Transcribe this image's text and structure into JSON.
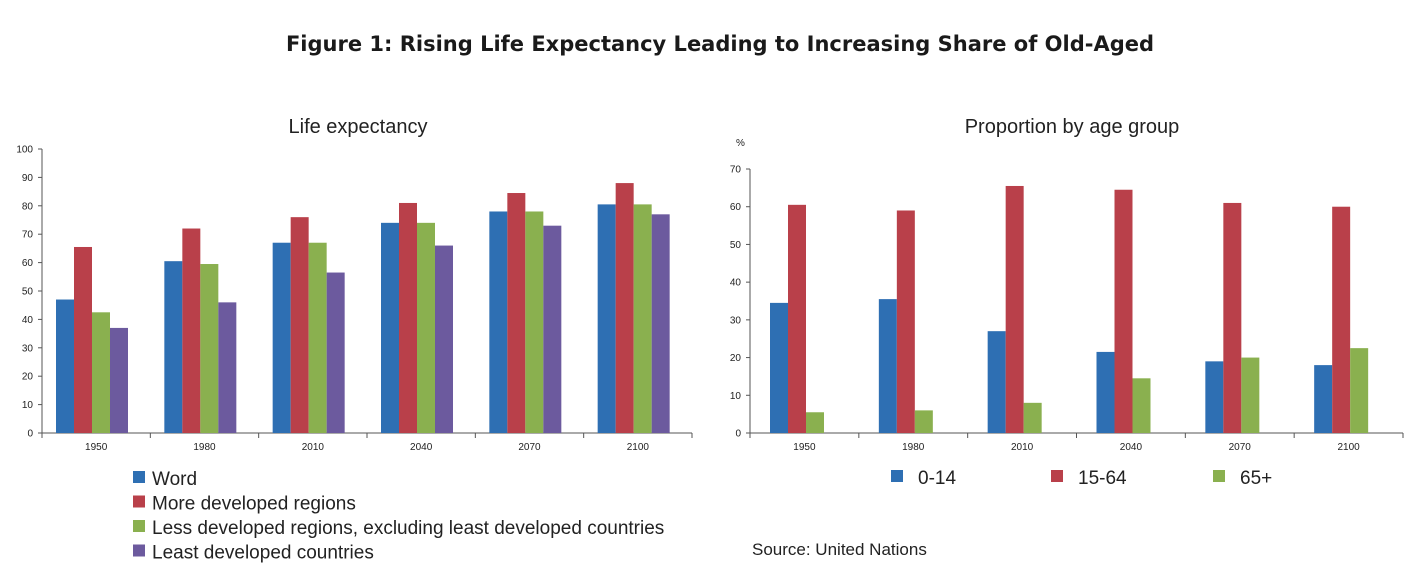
{
  "figure_title": "Figure 1: Rising Life Expectancy Leading to Increasing Share of Old-Aged",
  "source": "Source: United Nations",
  "colors": {
    "blue": "#2e6fb3",
    "red": "#b9404a",
    "green": "#8ab04f",
    "purple": "#6c5a9e"
  },
  "chart_data": [
    {
      "type": "bar",
      "title": "Life expectancy",
      "categories": [
        "1950",
        "1980",
        "2010",
        "2040",
        "2070",
        "2100"
      ],
      "ylim": [
        0,
        100
      ],
      "yticks": [
        0,
        10,
        20,
        30,
        40,
        50,
        60,
        70,
        80,
        90,
        100
      ],
      "ylabel": "",
      "xlabel": "",
      "legend_position": "bottom-left",
      "series": [
        {
          "name": "Word",
          "color": "#2e6fb3",
          "values": [
            47,
            60.5,
            67,
            74,
            78,
            80.5
          ]
        },
        {
          "name": "More developed regions",
          "color": "#b9404a",
          "values": [
            65.5,
            72,
            76,
            81,
            84.5,
            88
          ]
        },
        {
          "name": "Less developed regions, excluding least developed countries",
          "color": "#8ab04f",
          "values": [
            42.5,
            59.5,
            67,
            74,
            78,
            80.5
          ]
        },
        {
          "name": "Least developed countries",
          "color": "#6c5a9e",
          "values": [
            37,
            46,
            56.5,
            66,
            73,
            77
          ]
        }
      ]
    },
    {
      "type": "bar",
      "title": "Proportion by age group",
      "unit": "%",
      "categories": [
        "1950",
        "1980",
        "2010",
        "2040",
        "2070",
        "2100"
      ],
      "ylim": [
        0,
        70
      ],
      "yticks": [
        0,
        10,
        20,
        30,
        40,
        50,
        60,
        70
      ],
      "ylabel": "",
      "xlabel": "",
      "legend_position": "bottom",
      "series": [
        {
          "name": "0-14",
          "color": "#2e6fb3",
          "values": [
            34.5,
            35.5,
            27,
            21.5,
            19,
            18
          ]
        },
        {
          "name": "15-64",
          "color": "#b9404a",
          "values": [
            60.5,
            59,
            65.5,
            64.5,
            61,
            60
          ]
        },
        {
          "name": "65+",
          "color": "#8ab04f",
          "values": [
            5.5,
            6,
            8,
            14.5,
            20,
            22.5
          ]
        }
      ]
    }
  ]
}
